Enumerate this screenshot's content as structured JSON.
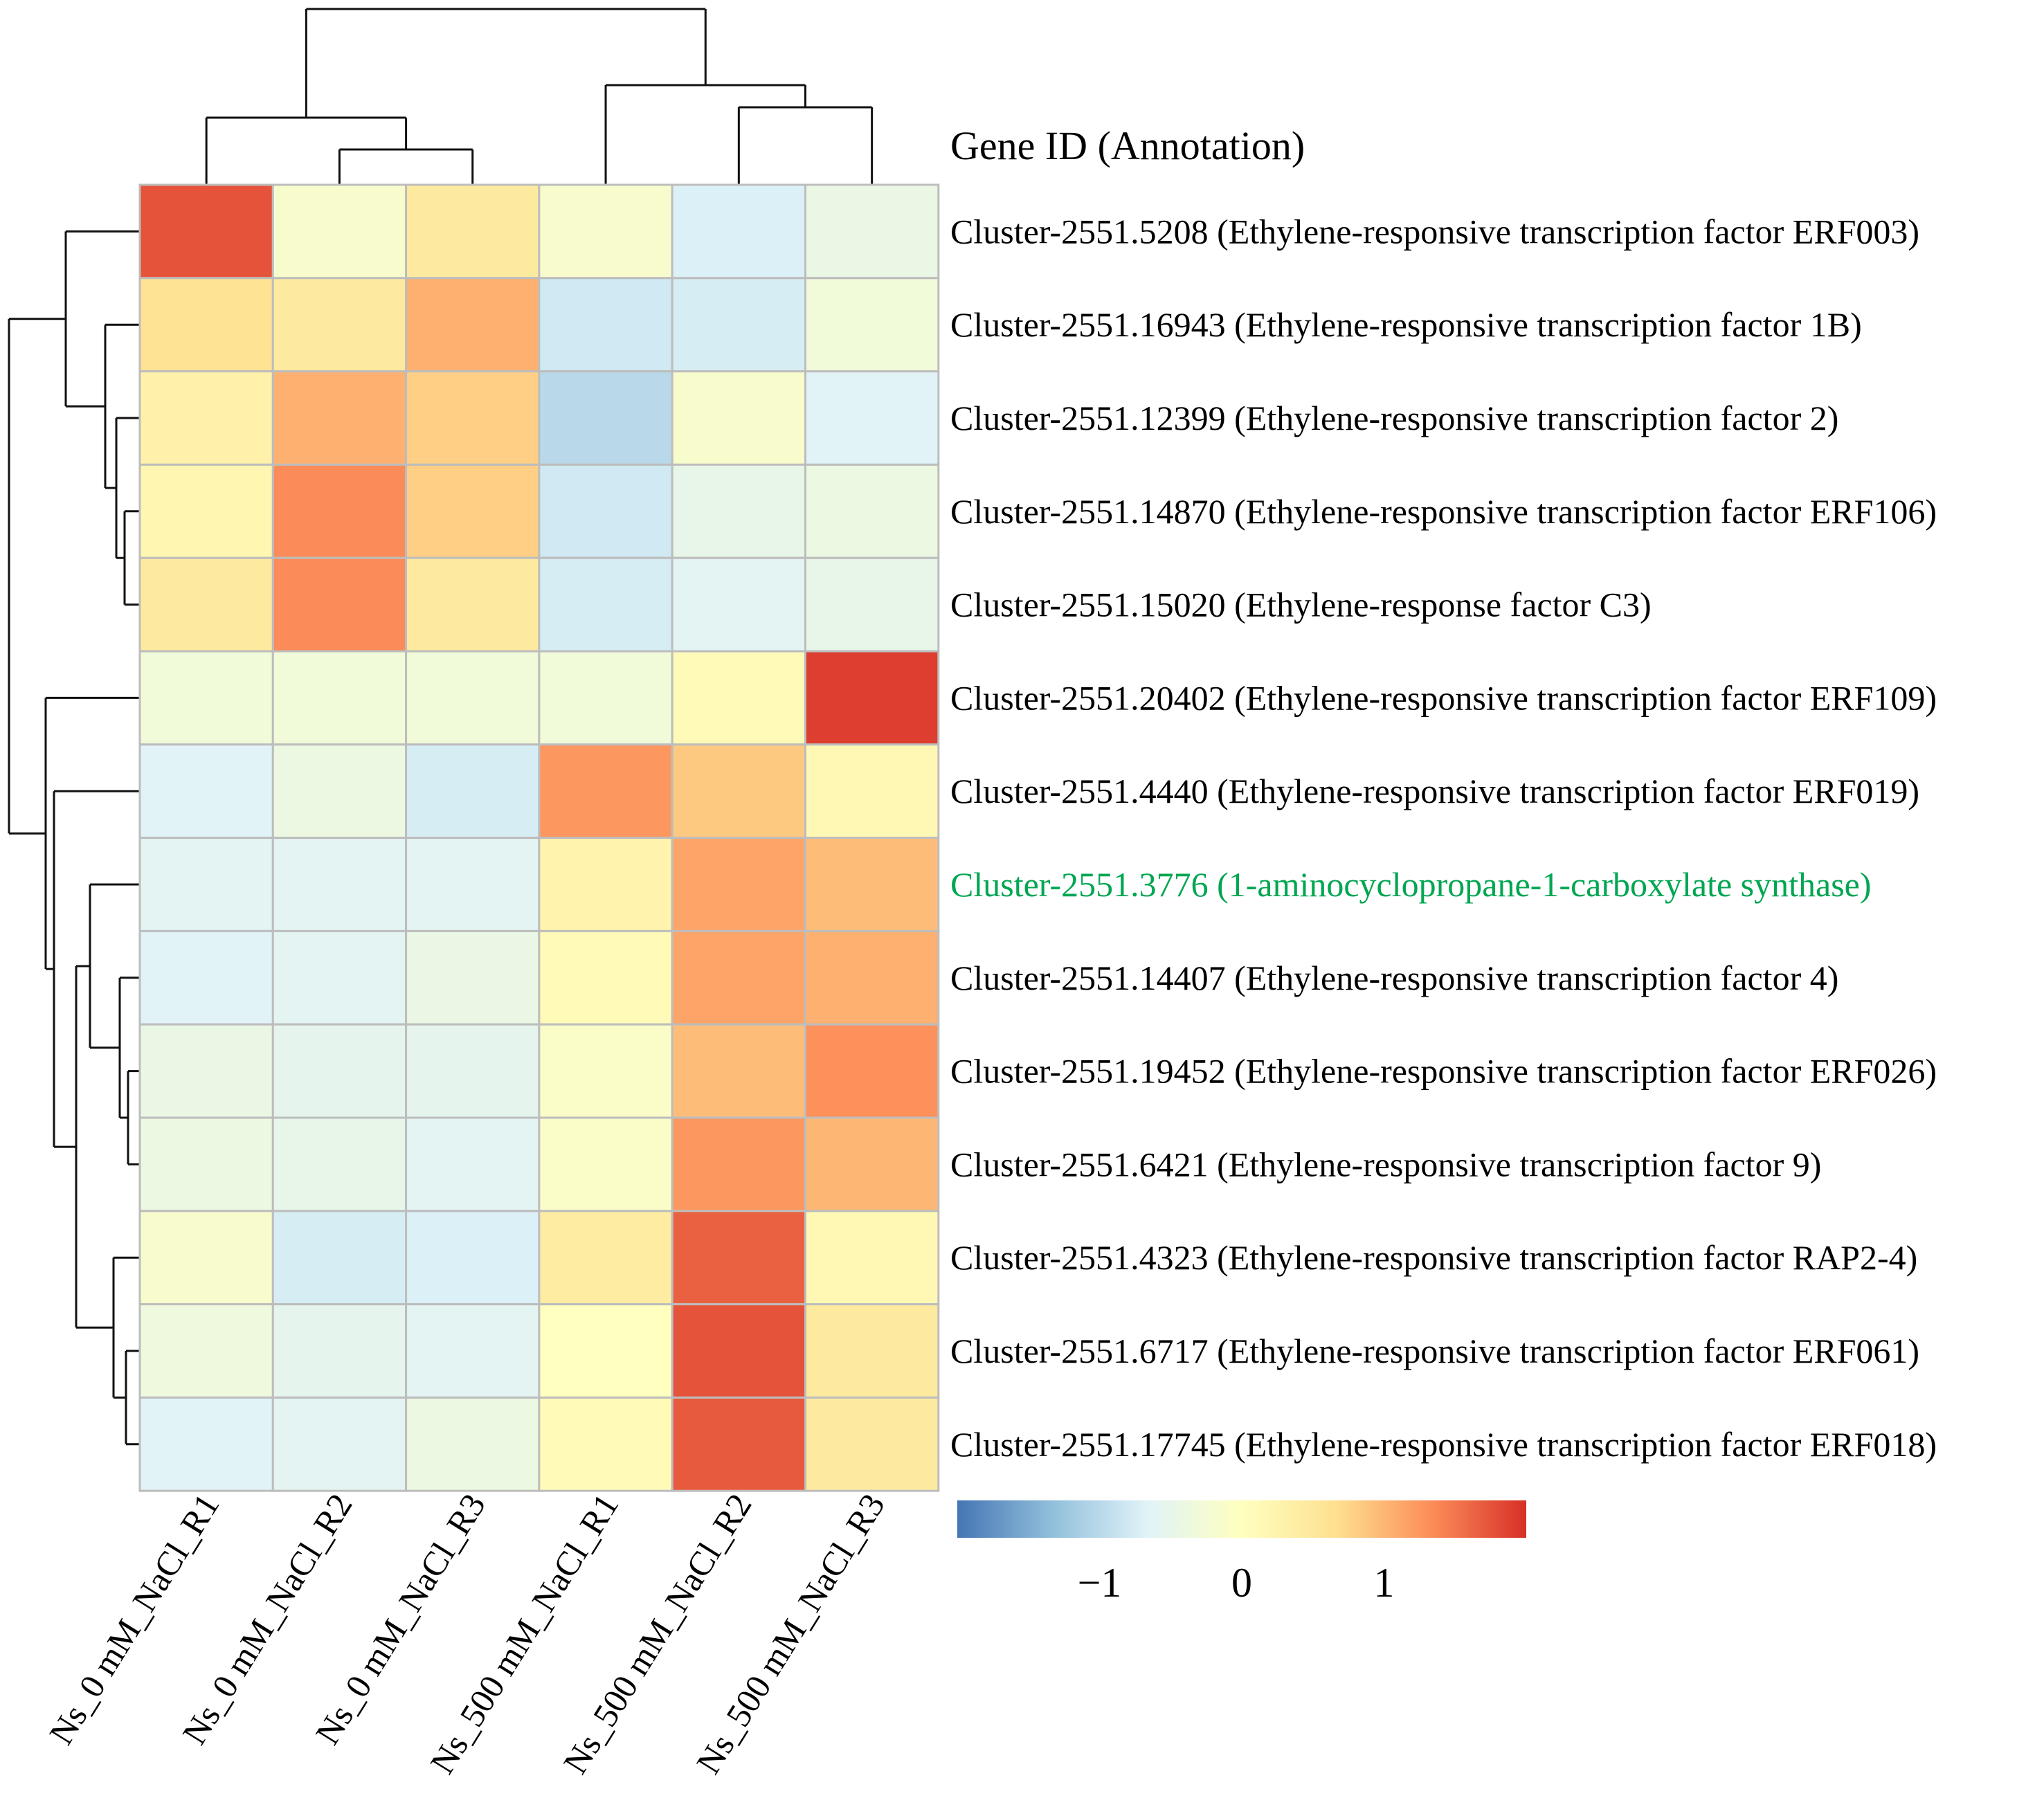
{
  "chart_data": {
    "type": "heatmap",
    "title": "",
    "header_label": "Gene ID (Annotation)",
    "columns": [
      "Ns_0 mM_NaCl_R1",
      "Ns_0 mM_NaCl_R2",
      "Ns_0 mM_NaCl_R3",
      "Ns_500 mM_NaCl_R1",
      "Ns_500 mM_NaCl_R2",
      "Ns_500 mM_NaCl_R3"
    ],
    "rows": [
      {
        "label": "Cluster-2551.5208 (Ethylene-responsive transcription factor ERF003)",
        "highlight": false,
        "values": [
          1.75,
          -0.15,
          0.45,
          -0.15,
          -0.7,
          -0.45
        ]
      },
      {
        "label": "Cluster-2551.16943 (Ethylene-responsive transcription factor 1B)",
        "highlight": false,
        "values": [
          0.6,
          0.45,
          1.05,
          -0.8,
          -0.75,
          -0.3
        ]
      },
      {
        "label": "Cluster-2551.12399 (Ethylene-responsive transcription factor 2)",
        "highlight": false,
        "values": [
          0.3,
          1.05,
          0.8,
          -1.0,
          -0.15,
          -0.65
        ]
      },
      {
        "label": "Cluster-2551.14870 (Ethylene-responsive transcription factor ERF106)",
        "highlight": false,
        "values": [
          0.2,
          1.35,
          0.8,
          -0.8,
          -0.5,
          -0.4
        ]
      },
      {
        "label": "Cluster-2551.15020 (Ethylene-response factor C3)",
        "highlight": false,
        "values": [
          0.45,
          1.35,
          0.45,
          -0.75,
          -0.6,
          -0.5
        ]
      },
      {
        "label": "Cluster-2551.20402 (Ethylene-responsive transcription factor ERF109)",
        "highlight": false,
        "values": [
          -0.3,
          -0.3,
          -0.3,
          -0.3,
          0.1,
          1.9
        ]
      },
      {
        "label": "Cluster-2551.4440 (Ethylene-responsive transcription factor ERF019)",
        "highlight": false,
        "values": [
          -0.65,
          -0.4,
          -0.75,
          1.25,
          0.85,
          0.15
        ]
      },
      {
        "label": "Cluster-2551.3776 (1-aminocyclopropane-1-carboxylate synthase)",
        "highlight": true,
        "values": [
          -0.6,
          -0.6,
          -0.6,
          0.25,
          1.15,
          0.95
        ]
      },
      {
        "label": "Cluster-2551.14407 (Ethylene-responsive transcription factor 4)",
        "highlight": false,
        "values": [
          -0.65,
          -0.6,
          -0.45,
          0.1,
          1.15,
          1.05
        ]
      },
      {
        "label": "Cluster-2551.19452 (Ethylene-responsive transcription factor ERF026)",
        "highlight": false,
        "values": [
          -0.45,
          -0.55,
          -0.55,
          -0.1,
          0.95,
          1.3
        ]
      },
      {
        "label": "Cluster-2551.6421 (Ethylene-responsive transcription factor 9)",
        "highlight": false,
        "values": [
          -0.4,
          -0.5,
          -0.6,
          -0.1,
          1.25,
          1.0
        ]
      },
      {
        "label": "Cluster-2551.4323 (Ethylene-responsive transcription factor RAP2-4)",
        "highlight": false,
        "values": [
          -0.15,
          -0.75,
          -0.7,
          0.4,
          1.65,
          0.15
        ]
      },
      {
        "label": "Cluster-2551.6717 (Ethylene-responsive transcription factor ERF061)",
        "highlight": false,
        "values": [
          -0.35,
          -0.55,
          -0.6,
          0.0,
          1.75,
          0.45
        ]
      },
      {
        "label": "Cluster-2551.17745 (Ethylene-responsive transcription factor ERF018)",
        "highlight": false,
        "values": [
          -0.65,
          -0.6,
          -0.4,
          0.1,
          1.7,
          0.45
        ]
      }
    ],
    "color_scale": {
      "range": [
        -2,
        2
      ],
      "ticks": [
        -1,
        0,
        1
      ],
      "tick_labels": [
        "−1",
        "0",
        "1"
      ],
      "stops": [
        "#4575B4",
        "#91BFDB",
        "#E0F3F8",
        "#FFFFBF",
        "#FEE090",
        "#FC8D59",
        "#D73027"
      ]
    },
    "highlight_color": "#00A651",
    "column_dendrogram": "((R1_0mM,(R2_0mM,R3_0mM)),(R1_500mM,(R2_500mM,R3_500mM)))",
    "row_dendrogram": "((ERF003,(1B,(2,(ERF106,C3)))),(ERF109,(ERF019,((ACS,(4,(ERF026,9))),(RAP2-4,(ERF061,ERF018))))))",
    "legend_placement": "bottom-right",
    "grid": true
  }
}
